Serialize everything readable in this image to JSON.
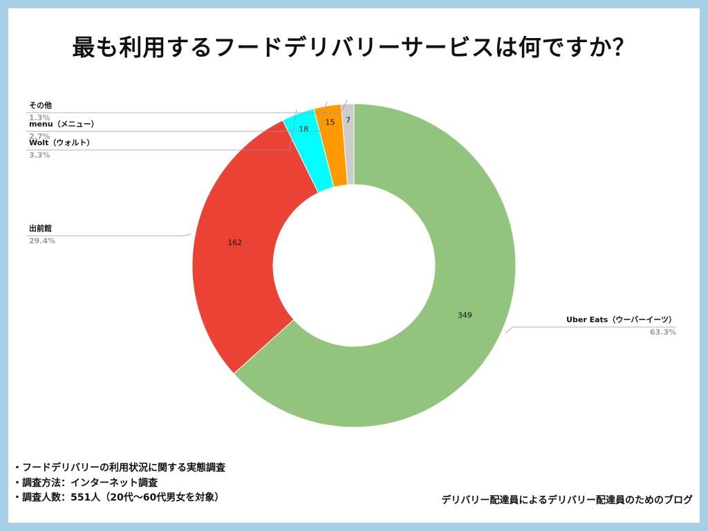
{
  "title": "最も利用するフードデリバリーサービスは何ですか？",
  "chart_data": {
    "type": "pie",
    "donut": true,
    "slices": [
      {
        "label": "Uber Eats（ウーバーイーツ）",
        "value": 349,
        "percent": "63.3%",
        "color": "#93c47d"
      },
      {
        "label": "出前館",
        "value": 162,
        "percent": "29.4%",
        "color": "#ea4335"
      },
      {
        "label": "Wolt（ウォルト）",
        "value": 18,
        "percent": "3.3%",
        "color": "#00ffff"
      },
      {
        "label": "menu（メニュー）",
        "value": 15,
        "percent": "2.7%",
        "color": "#ff9900"
      },
      {
        "label": "その他",
        "value": 7,
        "percent": "1.3%",
        "color": "#cccccc"
      }
    ]
  },
  "notes": [
    "・フードデリバリーの利用状況に関する実態調査",
    "・調査方法：インターネット調査",
    "・調査人数：551人（20代〜60代男女を対象）"
  ],
  "credit": "デリバリー配達員によるデリバリー配達員のためのブログ"
}
